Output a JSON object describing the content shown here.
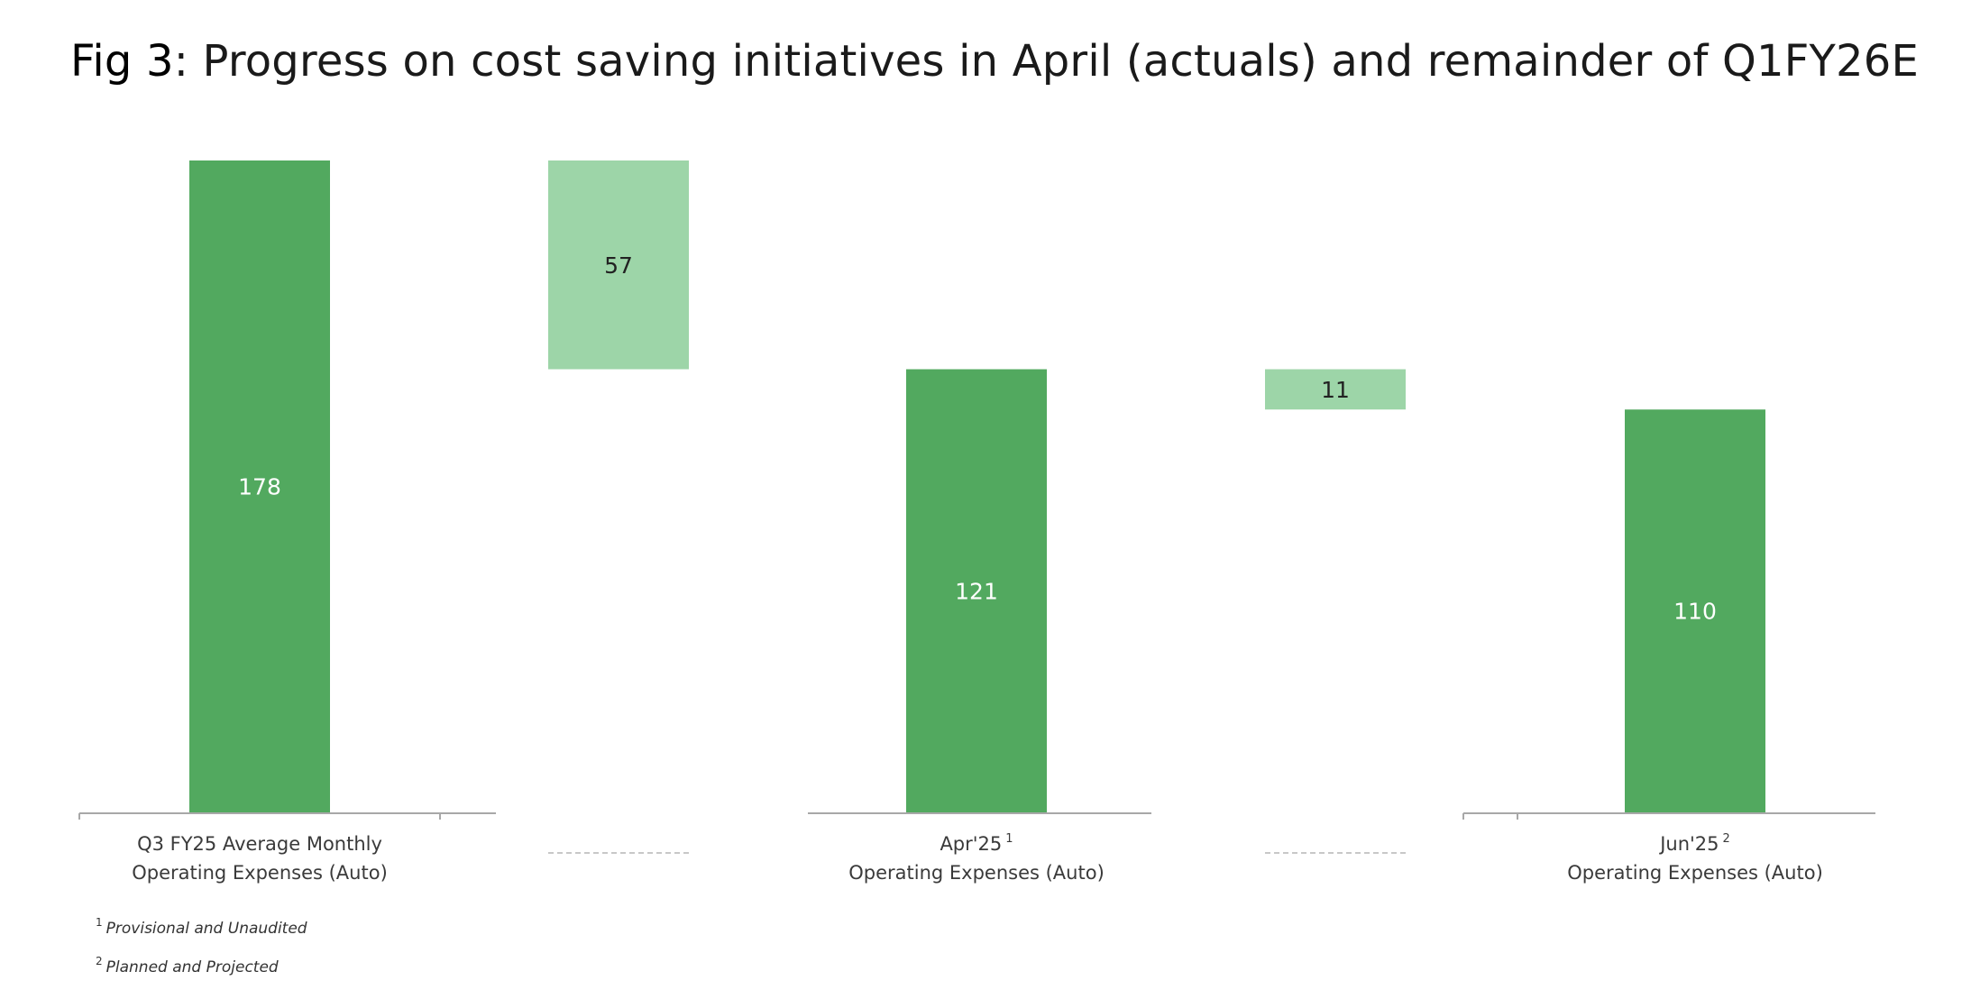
{
  "title": {
    "fig_num": "Fig 3",
    "text": ": Progress on cost saving initiatives in April (actuals) and remainder of Q1FY26E"
  },
  "colors": {
    "total": "#52a95f",
    "delta": "#9dd5a8",
    "axis": "#a8a8a8",
    "label_on_dark": "#ffffff",
    "label_on_light": "#222222"
  },
  "chart_data": {
    "type": "bar",
    "subtype": "waterfall",
    "categories": [
      {
        "line1": "Q3 FY25 Average Monthly",
        "sup": "",
        "line2": "Operating Expenses (Auto)"
      },
      {
        "line1": "",
        "sup": "",
        "line2": ""
      },
      {
        "line1": "Apr'25",
        "sup": "1",
        "line2": "Operating Expenses (Auto)"
      },
      {
        "line1": "",
        "sup": "",
        "line2": ""
      },
      {
        "line1": "Jun'25",
        "sup": "2",
        "line2": "Operating Expenses (Auto)"
      }
    ],
    "bars": [
      {
        "kind": "total",
        "value": 178,
        "label": "178"
      },
      {
        "kind": "decrease",
        "value": 57,
        "label": "57"
      },
      {
        "kind": "total",
        "value": 121,
        "label": "121"
      },
      {
        "kind": "decrease",
        "value": 11,
        "label": "11"
      },
      {
        "kind": "total",
        "value": 110,
        "label": "110"
      }
    ],
    "ylim": [
      0,
      178
    ],
    "grid": false,
    "legend": "none"
  },
  "footnotes": [
    {
      "mark": "1",
      "text": "Provisional and Unaudited"
    },
    {
      "mark": "2",
      "text": "Planned and Projected"
    }
  ]
}
